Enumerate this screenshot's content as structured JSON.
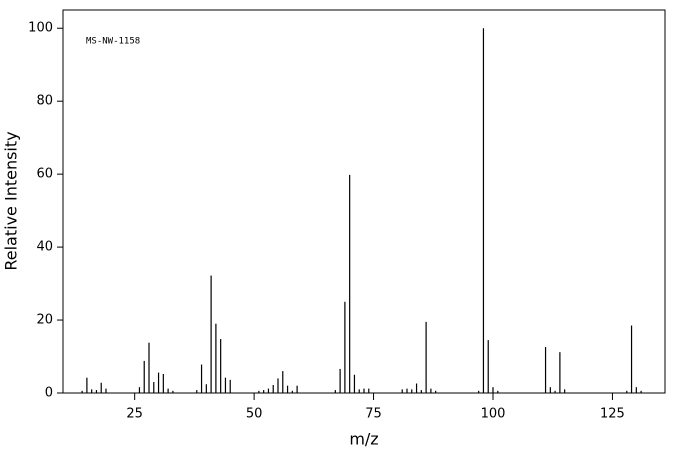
{
  "chart_data": {
    "type": "stem",
    "annotation": "MS-NW-1158",
    "xlabel": "m/z",
    "ylabel": "Relative Intensity",
    "x": [
      14,
      15,
      16,
      17,
      18,
      19,
      26,
      27,
      28,
      29,
      30,
      31,
      32,
      33,
      38,
      39,
      40,
      41,
      42,
      43,
      44,
      45,
      51,
      52,
      53,
      54,
      55,
      56,
      57,
      58,
      59,
      67,
      68,
      69,
      70,
      71,
      72,
      73,
      74,
      81,
      82,
      83,
      84,
      85,
      86,
      87,
      88,
      97,
      98,
      99,
      100,
      101,
      111,
      112,
      113,
      114,
      115,
      128,
      129,
      130,
      131
    ],
    "values": [
      0.6,
      4.2,
      1.0,
      0.8,
      2.8,
      1.2,
      1.6,
      8.8,
      13.8,
      3.0,
      5.6,
      5.2,
      1.2,
      0.6,
      0.8,
      7.8,
      2.4,
      32.2,
      19.0,
      14.8,
      4.2,
      3.6,
      0.6,
      0.8,
      1.2,
      2.2,
      4.0,
      6.0,
      2.0,
      0.6,
      2.0,
      0.8,
      6.6,
      25.0,
      59.8,
      5.0,
      1.0,
      1.2,
      1.2,
      1.0,
      1.2,
      1.0,
      2.6,
      0.8,
      19.5,
      1.2,
      0.6,
      0.6,
      100,
      14.5,
      1.6,
      0.6,
      12.6,
      1.6,
      0.6,
      11.2,
      1.0,
      0.6,
      18.5,
      1.6,
      0.6
    ],
    "color": "#000000",
    "xlim": [
      10,
      136
    ],
    "ylim": [
      0,
      105
    ],
    "xticks": [
      25,
      50,
      75,
      100,
      125
    ],
    "yticks": [
      0,
      20,
      40,
      60,
      80,
      100
    ]
  }
}
